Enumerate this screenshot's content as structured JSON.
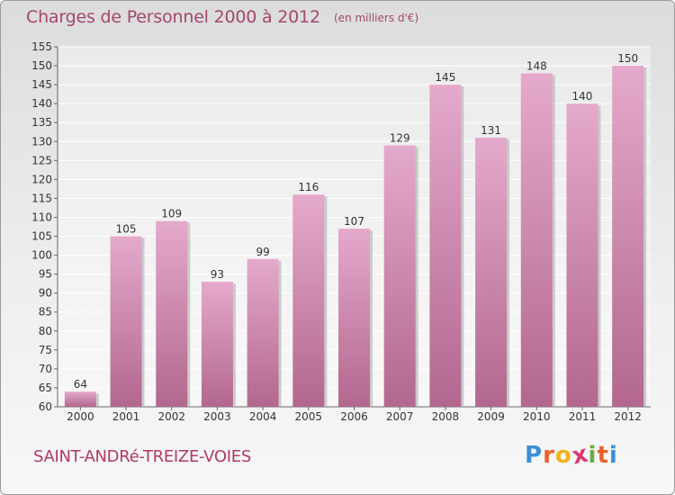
{
  "header": {
    "title": "Charges de Personnel 2000 à 2012",
    "subtitle": "(en milliers d'€)"
  },
  "footer": {
    "commune": "SAINT-ANDRé-TREIZE-VOIES",
    "logo_letters": [
      "P",
      "r",
      "o",
      "x",
      "i",
      "t",
      "i"
    ],
    "logo_colors": [
      "#3b8fd6",
      "#e8622a",
      "#f2b21b",
      "#d83a73",
      "#6aad3d",
      "#e8622a",
      "#3b8fd6"
    ]
  },
  "colors": {
    "bar_top": "#e4a9cc",
    "bar_bottom": "#b3678f",
    "text": "#333333"
  },
  "chart_data": {
    "type": "bar",
    "title": "Charges de Personnel 2000 à 2012",
    "subtitle": "(en milliers d'€)",
    "categories": [
      "2000",
      "2001",
      "2002",
      "2003",
      "2004",
      "2005",
      "2006",
      "2007",
      "2008",
      "2009",
      "2010",
      "2011",
      "2012"
    ],
    "values": [
      64,
      105,
      109,
      93,
      99,
      116,
      107,
      129,
      145,
      131,
      148,
      140,
      150
    ],
    "ylim": [
      60,
      155
    ],
    "yticks": [
      60,
      65,
      70,
      75,
      80,
      85,
      90,
      95,
      100,
      105,
      110,
      115,
      120,
      125,
      130,
      135,
      140,
      145,
      150,
      155
    ],
    "grid": true,
    "data_labels": true
  }
}
